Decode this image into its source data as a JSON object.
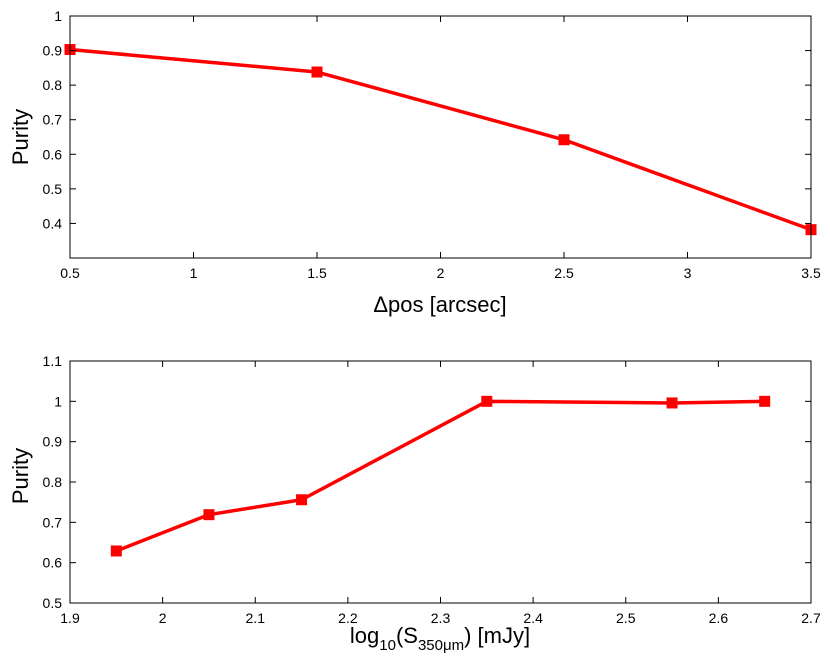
{
  "chart_data": [
    {
      "type": "line",
      "xlabel": "Δpos [arcsec]",
      "ylabel": "Purity",
      "xlim": [
        0.5,
        3.5
      ],
      "ylim": [
        0.3,
        1.0
      ],
      "xticks": [
        0.5,
        1,
        1.5,
        2,
        2.5,
        3,
        3.5
      ],
      "xtick_labels": [
        "0.5",
        "1",
        "1.5",
        "2",
        "2.5",
        "3",
        "3.5"
      ],
      "yticks": [
        0.4,
        0.5,
        0.6,
        0.7,
        0.8,
        0.9,
        1.0
      ],
      "ytick_labels": [
        "0.4",
        "0.5",
        "0.6",
        "0.7",
        "0.8",
        "0.9",
        "1"
      ],
      "grid": false,
      "series": [
        {
          "color": "#ff0000",
          "marker": "square",
          "x": [
            0.5,
            1.5,
            2.5,
            3.5
          ],
          "y": [
            0.903,
            0.838,
            0.642,
            0.382
          ]
        }
      ]
    },
    {
      "type": "line",
      "xlabel_parts": [
        "log",
        "10",
        "(S",
        "350μm",
        ") [mJy]"
      ],
      "ylabel": "Purity",
      "xlim": [
        1.9,
        2.7
      ],
      "ylim": [
        0.5,
        1.1
      ],
      "xticks": [
        1.9,
        2.0,
        2.1,
        2.2,
        2.3,
        2.4,
        2.5,
        2.6,
        2.7
      ],
      "xtick_labels": [
        "1.9",
        "2",
        "2.1",
        "2.2",
        "2.3",
        "2.4",
        "2.5",
        "2.6",
        "2.7"
      ],
      "yticks": [
        0.5,
        0.6,
        0.7,
        0.8,
        0.9,
        1.0,
        1.1
      ],
      "ytick_labels": [
        "0.5",
        "0.6",
        "0.7",
        "0.8",
        "0.9",
        "1",
        "1.1"
      ],
      "grid": false,
      "series": [
        {
          "color": "#ff0000",
          "marker": "square",
          "x": [
            1.95,
            2.05,
            2.15,
            2.35,
            2.55,
            2.65
          ],
          "y": [
            0.629,
            0.719,
            0.756,
            1.0,
            0.996,
            1.0
          ]
        }
      ]
    }
  ]
}
